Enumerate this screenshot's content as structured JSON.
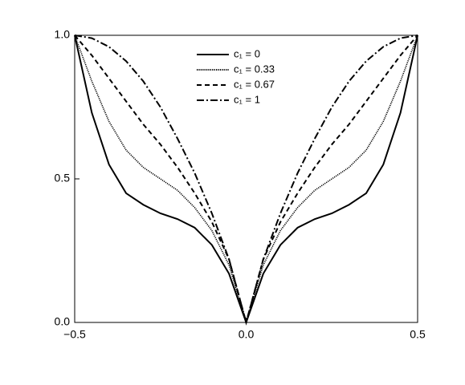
{
  "chart_data": {
    "type": "line",
    "x": [
      -0.5,
      -0.45,
      -0.4,
      -0.35,
      -0.3,
      -0.25,
      -0.2,
      -0.15,
      -0.1,
      -0.05,
      0,
      0.05,
      0.1,
      0.15,
      0.2,
      0.25,
      0.3,
      0.35,
      0.4,
      0.45,
      0.5
    ],
    "series": [
      {
        "name": "c₁ = 0",
        "color": "#000000",
        "dash": "solid",
        "values": [
          1.0,
          0.73,
          0.55,
          0.45,
          0.41,
          0.38,
          0.36,
          0.33,
          0.27,
          0.17,
          0,
          0.17,
          0.27,
          0.33,
          0.36,
          0.38,
          0.41,
          0.45,
          0.55,
          0.73,
          1.0
        ]
      },
      {
        "name": "c₁ = 0.33",
        "color": "#000000",
        "dash": "dotted",
        "values": [
          1.0,
          0.84,
          0.7,
          0.6,
          0.54,
          0.5,
          0.46,
          0.4,
          0.32,
          0.2,
          0,
          0.2,
          0.32,
          0.4,
          0.46,
          0.5,
          0.54,
          0.6,
          0.7,
          0.84,
          1.0
        ]
      },
      {
        "name": "c₁ = 0.67",
        "color": "#000000",
        "dash": "dashed",
        "values": [
          1.0,
          0.93,
          0.85,
          0.77,
          0.69,
          0.62,
          0.54,
          0.45,
          0.35,
          0.22,
          0,
          0.22,
          0.35,
          0.45,
          0.54,
          0.62,
          0.69,
          0.77,
          0.85,
          0.93,
          1.0
        ]
      },
      {
        "name": "c₁ = 1",
        "color": "#000000",
        "dash": "dashdot",
        "values": [
          1.0,
          0.99,
          0.96,
          0.91,
          0.84,
          0.75,
          0.64,
          0.52,
          0.38,
          0.22,
          0,
          0.22,
          0.38,
          0.52,
          0.64,
          0.75,
          0.84,
          0.91,
          0.96,
          0.99,
          1.0
        ]
      }
    ],
    "xlim": [
      -0.5,
      0.5
    ],
    "ylim": [
      0,
      1
    ],
    "xticks": [
      {
        "value": -0.5,
        "label": "−0.5"
      },
      {
        "value": 0,
        "label": "0.0"
      },
      {
        "value": 0.5,
        "label": "0.5"
      }
    ],
    "yticks": [
      {
        "value": 0,
        "label": "0.0"
      },
      {
        "value": 0.5,
        "label": "0.5"
      },
      {
        "value": 1,
        "label": "1.0"
      }
    ],
    "grid": false,
    "legend": "top"
  }
}
